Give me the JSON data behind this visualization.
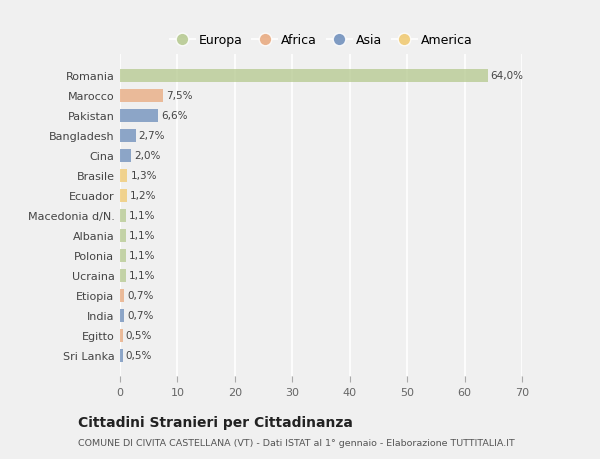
{
  "countries": [
    "Romania",
    "Marocco",
    "Pakistan",
    "Bangladesh",
    "Cina",
    "Brasile",
    "Ecuador",
    "Macedonia d/N.",
    "Albania",
    "Polonia",
    "Ucraina",
    "Etiopia",
    "India",
    "Egitto",
    "Sri Lanka"
  ],
  "values": [
    64.0,
    7.5,
    6.6,
    2.7,
    2.0,
    1.3,
    1.2,
    1.1,
    1.1,
    1.1,
    1.1,
    0.7,
    0.7,
    0.5,
    0.5
  ],
  "labels": [
    "64,0%",
    "7,5%",
    "6,6%",
    "2,7%",
    "2,0%",
    "1,3%",
    "1,2%",
    "1,1%",
    "1,1%",
    "1,1%",
    "1,1%",
    "0,7%",
    "0,7%",
    "0,5%",
    "0,5%"
  ],
  "colors": [
    "#b5c98e",
    "#e8a87c",
    "#6b8cba",
    "#6b8cba",
    "#6b8cba",
    "#f0c96e",
    "#f0c96e",
    "#b5c98e",
    "#b5c98e",
    "#b5c98e",
    "#b5c98e",
    "#e8a87c",
    "#6b8cba",
    "#e8a87c",
    "#6b8cba"
  ],
  "legend_labels": [
    "Europa",
    "Africa",
    "Asia",
    "America"
  ],
  "legend_colors": [
    "#b5c98e",
    "#e8a87c",
    "#6b8cba",
    "#f0c96e"
  ],
  "xlim": [
    0,
    70
  ],
  "xticks": [
    0,
    10,
    20,
    30,
    40,
    50,
    60,
    70
  ],
  "title": "Cittadini Stranieri per Cittadinanza",
  "subtitle": "COMUNE DI CIVITA CASTELLANA (VT) - Dati ISTAT al 1° gennaio - Elaborazione TUTTITALIA.IT",
  "background_color": "#f0f0f0",
  "plot_bg_color": "#f0f0f0",
  "grid_color": "#ffffff",
  "bar_height": 0.65,
  "alpha": 0.75
}
